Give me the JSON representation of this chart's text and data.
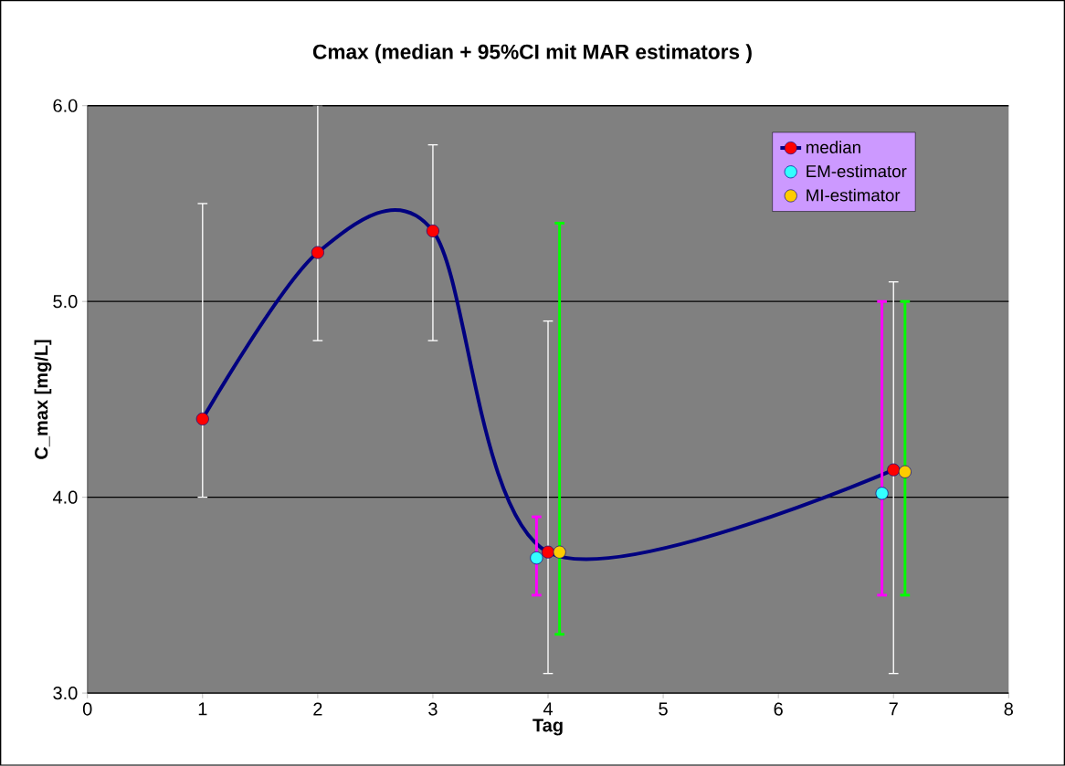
{
  "chart_data": {
    "type": "line",
    "title": "Cmax (median + 95%CI mit MAR estimators )",
    "xlabel": "Tag",
    "ylabel": "C_max [mg/L]",
    "xlim": [
      0,
      8
    ],
    "xticks": [
      0,
      1,
      2,
      3,
      4,
      5,
      6,
      7,
      8
    ],
    "ylim": [
      3,
      6
    ],
    "yticks": [
      {
        "value": 3,
        "label": "3.0"
      },
      {
        "value": 4,
        "label": "4.0"
      },
      {
        "value": 5,
        "label": "5.0"
      },
      {
        "value": 6,
        "label": "6.0"
      }
    ],
    "grid": "y",
    "legend": "top right",
    "marker": "circle",
    "series": [
      {
        "name": "median",
        "color": "#ff0000",
        "x": [
          1,
          2,
          3,
          4,
          7
        ],
        "values": [
          4.4,
          5.25,
          5.36,
          3.72,
          4.14
        ],
        "errors": [
          [
            4.0,
            5.5
          ],
          [
            4.8,
            6.0
          ],
          [
            4.8,
            5.8
          ],
          [
            3.1,
            4.9
          ],
          [
            3.1,
            5.1
          ]
        ]
      },
      {
        "name": "EM-estimator",
        "type": "scatter",
        "color": "#33ffff",
        "x": [
          3.9,
          6.9
        ],
        "values": [
          3.69,
          4.02
        ],
        "errors": [
          [
            3.5,
            3.9
          ],
          [
            3.5,
            5.0
          ]
        ]
      },
      {
        "name": "MI-estimator",
        "type": "scatter",
        "color": "#ffcc00",
        "x": [
          4.1,
          7.1
        ],
        "values": [
          3.72,
          4.13
        ],
        "errors": [
          [
            3.3,
            5.4
          ],
          [
            3.5,
            5.0
          ]
        ]
      }
    ]
  }
}
